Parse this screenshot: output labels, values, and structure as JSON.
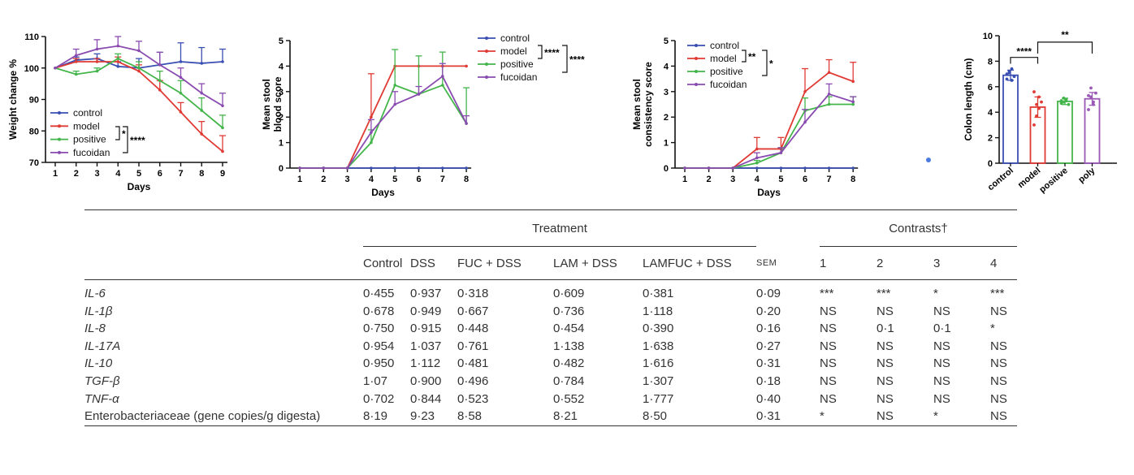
{
  "colors": {
    "control": "#3a4fb2",
    "model": "#e03a34",
    "positive": "#43b54a",
    "fucoidan": "#8a4bb0",
    "poly": "#9b59b6"
  },
  "chart_data": [
    {
      "type": "line",
      "ylabel": "Weight change %",
      "xlabel": "Days",
      "x": [
        1,
        2,
        3,
        4,
        5,
        6,
        7,
        8,
        9
      ],
      "ylim": [
        70,
        110
      ],
      "yticks": [
        70,
        80,
        90,
        100,
        110
      ],
      "legend_placement": "bottom-left",
      "series": [
        {
          "name": "control",
          "values": [
            100,
            102.5,
            103,
            100.5,
            100,
            101,
            102,
            101.5,
            102
          ],
          "err": [
            0,
            1,
            1.5,
            1.5,
            3,
            4,
            6,
            5,
            4
          ]
        },
        {
          "name": "model",
          "values": [
            100,
            102,
            102,
            102,
            99,
            93,
            86,
            79,
            73.5
          ],
          "err": [
            0,
            1,
            1,
            1.5,
            2,
            3,
            3,
            4,
            5
          ]
        },
        {
          "name": "positive",
          "values": [
            100,
            98,
            99,
            103,
            100,
            96,
            92,
            86.5,
            81
          ],
          "err": [
            0,
            1,
            1,
            1.5,
            2,
            3,
            4,
            4,
            4
          ]
        },
        {
          "name": "fucoidan",
          "values": [
            100,
            104,
            106,
            107,
            105.5,
            101,
            97,
            92,
            88
          ],
          "err": [
            0,
            2,
            3,
            3,
            3,
            4,
            3,
            3,
            4
          ]
        }
      ],
      "annotations": [
        {
          "label": "*"
        },
        {
          "label": "****"
        }
      ]
    },
    {
      "type": "line",
      "ylabel": "Mean stool blood score",
      "xlabel": "Days",
      "x": [
        1,
        2,
        3,
        4,
        5,
        6,
        7,
        8
      ],
      "ylim": [
        0,
        5
      ],
      "yticks": [
        0,
        1,
        2,
        3,
        4,
        5
      ],
      "legend_placement": "top-right",
      "series": [
        {
          "name": "control",
          "values": [
            0,
            0,
            0,
            0,
            0,
            0,
            0,
            0
          ],
          "err": [
            0,
            0,
            0,
            0,
            0,
            0,
            0,
            0
          ]
        },
        {
          "name": "model",
          "values": [
            0,
            0,
            0,
            2,
            4,
            4,
            4,
            4
          ],
          "err": [
            0,
            0,
            0,
            1.7,
            0,
            0,
            0,
            0
          ]
        },
        {
          "name": "positive",
          "values": [
            0,
            0,
            0,
            1,
            3.25,
            2.9,
            3.25,
            1.75
          ],
          "err": [
            0,
            0,
            0,
            0.5,
            1.4,
            1.5,
            1.3,
            1.4
          ]
        },
        {
          "name": "fucoidan",
          "values": [
            0,
            0,
            0,
            1.4,
            2.5,
            2.9,
            3.6,
            1.75
          ],
          "err": [
            0,
            0,
            0,
            0.5,
            0.5,
            0.3,
            0.5,
            0.3
          ]
        }
      ],
      "annotations": [
        {
          "label": "****"
        },
        {
          "label": "****"
        }
      ]
    },
    {
      "type": "line",
      "ylabel": "Mean stool consistency score",
      "xlabel": "Days",
      "x": [
        1,
        2,
        3,
        4,
        5,
        6,
        7,
        8
      ],
      "ylim": [
        0,
        5
      ],
      "yticks": [
        0,
        1,
        2,
        3,
        4,
        5
      ],
      "legend_placement": "top-left",
      "series": [
        {
          "name": "control",
          "values": [
            0,
            0,
            0,
            0,
            0,
            0,
            0,
            0
          ],
          "err": [
            0,
            0,
            0,
            0,
            0,
            0,
            0,
            0
          ]
        },
        {
          "name": "model",
          "values": [
            0,
            0,
            0,
            0.75,
            0.75,
            3,
            3.75,
            3.4
          ],
          "err": [
            0,
            0,
            0,
            0.45,
            0.45,
            0.9,
            0.5,
            0.75
          ]
        },
        {
          "name": "positive",
          "values": [
            0,
            0,
            0,
            0.2,
            0.6,
            2.25,
            2.5,
            2.5
          ],
          "err": [
            0,
            0,
            0,
            0.1,
            0.2,
            0.5,
            0.3,
            0.3
          ]
        },
        {
          "name": "fucoidan",
          "values": [
            0,
            0,
            0,
            0.4,
            0.6,
            1.8,
            2.9,
            2.6
          ],
          "err": [
            0,
            0,
            0,
            0.2,
            0.2,
            0.5,
            0.4,
            0.2
          ]
        }
      ],
      "annotations": [
        {
          "label": "**"
        },
        {
          "label": "*"
        }
      ]
    },
    {
      "type": "bar",
      "ylabel": "Colon length (cm)",
      "categories": [
        "control",
        "model",
        "positive",
        "poly"
      ],
      "values": [
        6.9,
        4.4,
        4.85,
        5.05
      ],
      "err": [
        0.4,
        0.8,
        0.25,
        0.5
      ],
      "points": [
        [
          6.6,
          7.2,
          7.4,
          6.8,
          7.0,
          7.1,
          6.5
        ],
        [
          5.6,
          3.7,
          4.3,
          4.8,
          3.0,
          4.6,
          5.2
        ],
        [
          4.9,
          4.8,
          5.0,
          4.6,
          4.7,
          5.1,
          4.9
        ],
        [
          5.3,
          5.9,
          4.8,
          5.5,
          4.2,
          5.2,
          4.6
        ]
      ],
      "ylim": [
        0,
        10
      ],
      "yticks": [
        0,
        2,
        4,
        6,
        8,
        10
      ],
      "annotations": [
        {
          "label": "****"
        },
        {
          "label": "**"
        }
      ]
    },
    {
      "type": "table",
      "group_headers": {
        "treatment": "Treatment",
        "contrasts": "Contrasts†"
      },
      "columns": [
        "Control",
        "DSS",
        "FUC + DSS",
        "LAM + DSS",
        "LAMFUC + DSS",
        "SEM",
        "1",
        "2",
        "3",
        "4"
      ],
      "rows": [
        {
          "label": "IL-6",
          "italic": true,
          "values": [
            "0·455",
            "0·937",
            "0·318",
            "0·609",
            "0·381",
            "0·09",
            "***",
            "***",
            "*",
            "***"
          ]
        },
        {
          "label": "IL-1β",
          "italic": true,
          "values": [
            "0·678",
            "0·949",
            "0·667",
            "0·736",
            "1·118",
            "0·20",
            "NS",
            "NS",
            "NS",
            "NS"
          ]
        },
        {
          "label": "IL-8",
          "italic": true,
          "values": [
            "0·750",
            "0·915",
            "0·448",
            "0·454",
            "0·390",
            "0·16",
            "NS",
            "0·1",
            "0·1",
            "*"
          ]
        },
        {
          "label": "IL-17A",
          "italic": true,
          "values": [
            "0·954",
            "1·037",
            "0·761",
            "1·138",
            "1·638",
            "0·27",
            "NS",
            "NS",
            "NS",
            "NS"
          ]
        },
        {
          "label": "IL-10",
          "italic": true,
          "values": [
            "0·950",
            "1·112",
            "0·481",
            "0·482",
            "1·616",
            "0·31",
            "NS",
            "NS",
            "NS",
            "NS"
          ]
        },
        {
          "label": "TGF-β",
          "italic": true,
          "values": [
            "1·07",
            "0·900",
            "0·496",
            "0·784",
            "1·307",
            "0·18",
            "NS",
            "NS",
            "NS",
            "NS"
          ]
        },
        {
          "label": "TNF-α",
          "italic": true,
          "values": [
            "0·702",
            "0·844",
            "0·523",
            "0·552",
            "1·777",
            "0·40",
            "NS",
            "NS",
            "NS",
            "NS"
          ]
        },
        {
          "label": "Enterobacteriaceae (gene copies/g digesta)",
          "italic": false,
          "values": [
            "8·19",
            "9·23",
            "8·58",
            "8·21",
            "8·50",
            "0·31",
            "*",
            "NS",
            "*",
            "NS"
          ]
        }
      ]
    }
  ]
}
